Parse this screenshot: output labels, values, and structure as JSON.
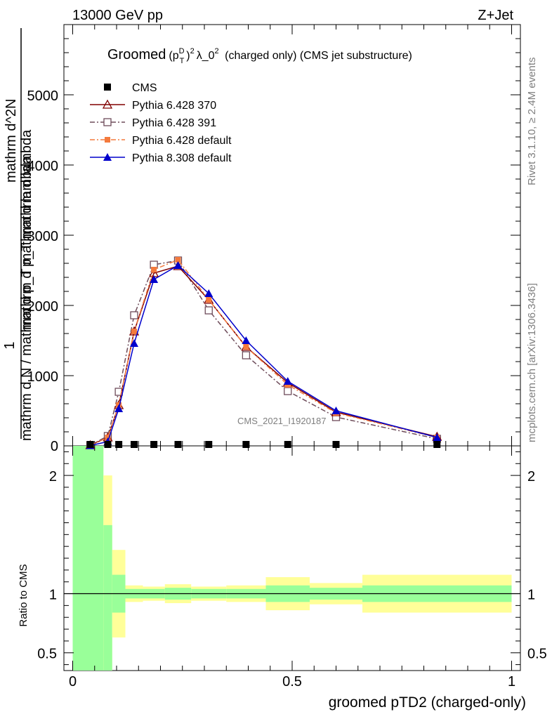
{
  "header": {
    "left": "13000 GeV pp",
    "right": "Z+Jet",
    "title_main": "Groomed",
    "title_expr": "(p",
    "title_sub": "T",
    "title_sup": "D",
    "title_rest": "λ_0",
    "title_sq": "2",
    "title_tail": " (charged only) (CMS jet substructure)",
    "watermark": "CMS_2021_I1920187",
    "side_top": "Rivet 3.1.10, ≥ 2.4M events",
    "side_bottom": "mcplots.cern.ch [arXiv:1306.3436]"
  },
  "ylabel_top": {
    "num": "1",
    "line1": "mathrm d N / mathrm d p_T mathrm d lambda",
    "line2": "mathrm d^2N",
    "line3": "mathrm d p_T mathrm d lambda"
  },
  "ratio_ylabel": "Ratio to CMS",
  "chart_data": [
    {
      "type": "line",
      "panel": "main",
      "xlabel": "groomed pTD2 (charged-only)",
      "xlim": [
        -0.02,
        1.02
      ],
      "ylim": [
        0,
        6000
      ],
      "yticks": [
        {
          "v": 1000,
          "label": "1000"
        },
        {
          "v": 2000,
          "label": "2000"
        },
        {
          "v": 3000,
          "label": "3000"
        },
        {
          "v": 4000,
          "label": "4000"
        },
        {
          "v": 5000,
          "label": "5000"
        }
      ],
      "y_zero_label": "0",
      "series": [
        {
          "name": "CMS",
          "color": "#000000",
          "marker": "square",
          "x": [
            0.04,
            0.08,
            0.105,
            0.14,
            0.185,
            0.24,
            0.31,
            0.395,
            0.49,
            0.6,
            0.83
          ],
          "y": [
            5,
            5,
            5,
            5,
            5,
            5,
            5,
            5,
            5,
            5,
            5
          ]
        },
        {
          "name": "Pythia 6.428 370",
          "color": "#800000",
          "dash": "",
          "marker": "triangle-open",
          "x": [
            0.04,
            0.08,
            0.105,
            0.14,
            0.185,
            0.24,
            0.31,
            0.395,
            0.49,
            0.6,
            0.83
          ],
          "y": [
            10,
            120,
            580,
            1630,
            2460,
            2560,
            2080,
            1410,
            900,
            480,
            130
          ]
        },
        {
          "name": "Pythia 6.428 391",
          "color": "#6e4c5a",
          "dash": "7,3,2,3",
          "marker": "square-open",
          "x": [
            0.04,
            0.08,
            0.105,
            0.14,
            0.185,
            0.24,
            0.31,
            0.395,
            0.49,
            0.6,
            0.83
          ],
          "y": [
            10,
            140,
            770,
            1860,
            2580,
            2640,
            1930,
            1290,
            780,
            410,
            100
          ]
        },
        {
          "name": "Pythia 6.428 default",
          "color": "#f47a3d",
          "dash": "7,3,2,3",
          "marker": "square-filled",
          "x": [
            0.04,
            0.08,
            0.105,
            0.14,
            0.185,
            0.24,
            0.31,
            0.395,
            0.49,
            0.6,
            0.83
          ],
          "y": [
            10,
            120,
            580,
            1630,
            2510,
            2650,
            2080,
            1410,
            870,
            470,
            120
          ]
        },
        {
          "name": "Pythia 8.308 default",
          "color": "#0000cc",
          "dash": "",
          "marker": "triangle-filled",
          "x": [
            0.04,
            0.08,
            0.105,
            0.14,
            0.185,
            0.24,
            0.31,
            0.395,
            0.49,
            0.6,
            0.83
          ],
          "y": [
            5,
            60,
            530,
            1460,
            2370,
            2570,
            2170,
            1500,
            920,
            500,
            120
          ]
        }
      ]
    },
    {
      "type": "area",
      "panel": "ratio",
      "ylabel": "Ratio to CMS",
      "xlim": [
        -0.02,
        1.02
      ],
      "ylim": [
        0.35,
        2.25
      ],
      "yticks": [
        {
          "v": 0.5,
          "label": "0.5"
        },
        {
          "v": 1,
          "label": "1"
        },
        {
          "v": 2,
          "label": "2"
        }
      ],
      "xticks": [
        {
          "v": 0,
          "label": "0"
        },
        {
          "v": 0.5,
          "label": "0.5"
        },
        {
          "v": 1,
          "label": "1"
        }
      ],
      "bands": [
        {
          "x0": 0.0,
          "x1": 0.07,
          "stat_lo": 0.35,
          "stat_hi": 2.25,
          "tot_lo": 0.35,
          "tot_hi": 2.25
        },
        {
          "x0": 0.07,
          "x1": 0.09,
          "stat_lo": 0.35,
          "stat_hi": 1.58,
          "tot_lo": 0.35,
          "tot_hi": 2.0
        },
        {
          "x0": 0.09,
          "x1": 0.12,
          "stat_lo": 0.84,
          "stat_hi": 1.16,
          "tot_lo": 0.63,
          "tot_hi": 1.37
        },
        {
          "x0": 0.12,
          "x1": 0.16,
          "stat_lo": 0.96,
          "stat_hi": 1.04,
          "tot_lo": 0.93,
          "tot_hi": 1.07
        },
        {
          "x0": 0.16,
          "x1": 0.21,
          "stat_lo": 0.96,
          "stat_hi": 1.04,
          "tot_lo": 0.94,
          "tot_hi": 1.06
        },
        {
          "x0": 0.21,
          "x1": 0.27,
          "stat_lo": 0.95,
          "stat_hi": 1.05,
          "tot_lo": 0.92,
          "tot_hi": 1.08
        },
        {
          "x0": 0.27,
          "x1": 0.35,
          "stat_lo": 0.96,
          "stat_hi": 1.04,
          "tot_lo": 0.94,
          "tot_hi": 1.06
        },
        {
          "x0": 0.35,
          "x1": 0.44,
          "stat_lo": 0.96,
          "stat_hi": 1.04,
          "tot_lo": 0.93,
          "tot_hi": 1.07
        },
        {
          "x0": 0.44,
          "x1": 0.54,
          "stat_lo": 0.93,
          "stat_hi": 1.07,
          "tot_lo": 0.86,
          "tot_hi": 1.14
        },
        {
          "x0": 0.54,
          "x1": 0.66,
          "stat_lo": 0.95,
          "stat_hi": 1.05,
          "tot_lo": 0.91,
          "tot_hi": 1.09
        },
        {
          "x0": 0.66,
          "x1": 1.0,
          "stat_lo": 0.93,
          "stat_hi": 1.07,
          "tot_lo": 0.84,
          "tot_hi": 1.16
        }
      ],
      "colors": {
        "stat": "#99ff99",
        "total": "#ffff99"
      }
    }
  ]
}
